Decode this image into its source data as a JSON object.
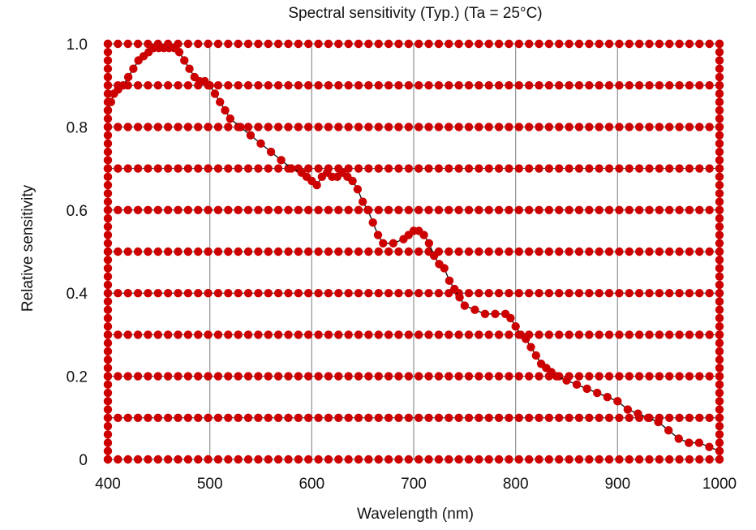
{
  "chart_data": {
    "type": "line",
    "title": "Spectral sensitivity (Typ.) (Ta = 25°C)",
    "xlabel": "Wavelength (nm)",
    "ylabel": "Relative sensitivity",
    "xlim": [
      400,
      1000
    ],
    "ylim": [
      0,
      1.0
    ],
    "x_ticks": [
      400,
      500,
      600,
      700,
      800,
      900,
      1000
    ],
    "x_tick_labels": [
      "400",
      "500",
      "600",
      "700",
      "800",
      "900",
      "1000"
    ],
    "y_ticks": [
      0,
      0.2,
      0.4,
      0.6,
      0.8,
      1.0
    ],
    "y_tick_labels": [
      "0",
      "0.2",
      "0.4",
      "0.6",
      "0.8",
      "1.0"
    ],
    "grid": true,
    "marker_color": "#cc0000",
    "line_color": "#111111",
    "grid_color": "#999999",
    "series": [
      {
        "x": [
          400,
          403,
          406,
          410,
          415,
          420,
          425,
          430,
          435,
          440,
          445,
          450,
          455,
          460,
          465,
          470,
          475,
          480,
          485,
          490,
          495,
          500,
          505,
          510,
          515,
          520,
          530,
          540,
          550,
          560,
          570,
          580,
          590,
          595,
          600,
          605,
          610,
          615,
          620,
          625,
          630,
          635,
          640,
          645,
          650,
          655,
          660,
          665,
          670,
          680,
          690,
          695,
          700,
          705,
          710,
          715,
          720,
          725,
          730,
          735,
          740,
          745,
          750,
          760,
          770,
          780,
          790,
          795,
          800,
          805,
          810,
          815,
          820,
          825,
          830,
          835,
          840,
          850,
          860,
          870,
          880,
          890,
          900,
          910,
          920,
          930,
          940,
          950,
          960,
          970,
          980,
          990,
          1000
        ],
        "y": [
          0.84,
          0.86,
          0.88,
          0.89,
          0.9,
          0.92,
          0.94,
          0.96,
          0.97,
          0.98,
          0.99,
          0.99,
          0.99,
          0.99,
          0.99,
          0.98,
          0.96,
          0.94,
          0.92,
          0.91,
          0.91,
          0.9,
          0.88,
          0.86,
          0.84,
          0.82,
          0.8,
          0.78,
          0.76,
          0.74,
          0.72,
          0.7,
          0.69,
          0.68,
          0.67,
          0.66,
          0.68,
          0.69,
          0.68,
          0.68,
          0.69,
          0.68,
          0.67,
          0.65,
          0.62,
          0.6,
          0.57,
          0.54,
          0.52,
          0.52,
          0.53,
          0.54,
          0.55,
          0.55,
          0.54,
          0.52,
          0.49,
          0.47,
          0.46,
          0.43,
          0.41,
          0.39,
          0.37,
          0.36,
          0.35,
          0.35,
          0.35,
          0.34,
          0.32,
          0.3,
          0.29,
          0.27,
          0.25,
          0.23,
          0.22,
          0.21,
          0.2,
          0.19,
          0.18,
          0.17,
          0.16,
          0.15,
          0.14,
          0.12,
          0.11,
          0.1,
          0.09,
          0.07,
          0.05,
          0.04,
          0.04,
          0.03,
          0.02
        ]
      }
    ]
  }
}
